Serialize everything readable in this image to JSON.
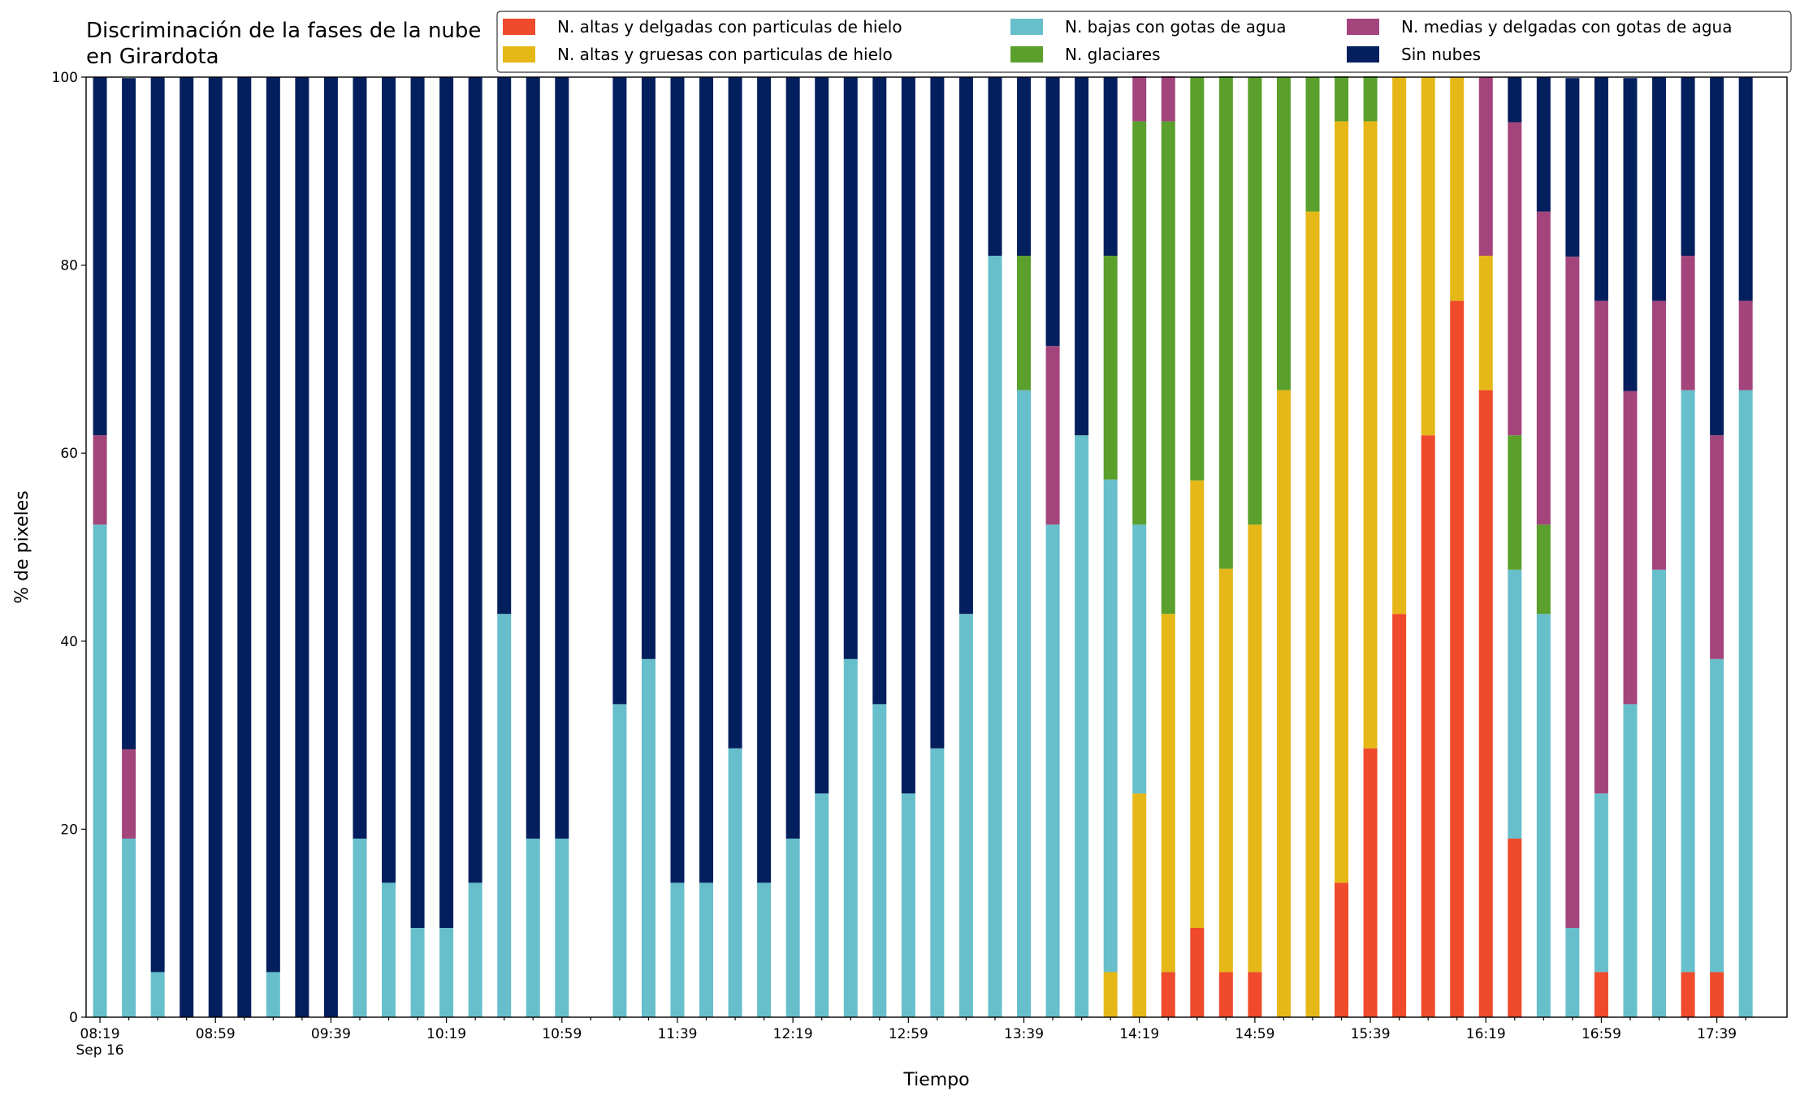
{
  "chart_data": {
    "type": "stacked_bar",
    "title": "Discriminación de la fases de la nube en Girardota",
    "x_label": "Tiempo",
    "y_label": "% de pixeles",
    "x_date_label": "Sep 16",
    "categories": [
      "08:19",
      null,
      null,
      null,
      "08:59",
      null,
      null,
      null,
      "09:39",
      null,
      null,
      null,
      "10:19",
      null,
      null,
      null,
      "10:59",
      null,
      null,
      null,
      "11:39",
      null,
      null,
      null,
      "12:19",
      null,
      null,
      null,
      "12:59",
      null,
      null,
      null,
      "13:39",
      null,
      null,
      null,
      "14:19",
      null,
      null,
      null,
      "14:59",
      null,
      null,
      null,
      "15:39",
      null,
      null,
      null,
      "16:19",
      null,
      null,
      null,
      "16:59",
      null,
      null,
      null,
      "17:39",
      null
    ],
    "ylim": [
      0,
      100
    ],
    "yticks": [
      0,
      20,
      40,
      60,
      80,
      100
    ],
    "legend": "upper right",
    "series": [
      {
        "name": "N. altas y delgadas con particulas de hielo",
        "color": "#ee4a2b",
        "values": [
          0,
          0,
          0,
          0,
          0,
          0,
          0,
          0,
          0,
          0,
          0,
          0,
          0,
          0,
          0,
          0,
          0,
          null,
          0,
          0,
          0,
          0,
          0,
          0,
          0,
          0,
          0,
          0,
          0,
          0,
          0,
          0,
          0,
          0,
          0,
          0,
          0,
          4.8,
          9.5,
          4.8,
          4.8,
          0,
          0,
          14.3,
          28.6,
          42.9,
          61.9,
          76.2,
          66.7,
          19.0,
          0,
          0,
          4.8,
          0,
          0,
          4.8,
          4.8,
          0
        ]
      },
      {
        "name": "N. altas y gruesas con particulas de hielo",
        "color": "#e5b818",
        "values": [
          0,
          0,
          0,
          0,
          0,
          0,
          0,
          0,
          0,
          0,
          0,
          0,
          0,
          0,
          0,
          0,
          0,
          null,
          0,
          0,
          0,
          0,
          0,
          0,
          0,
          0,
          0,
          0,
          0,
          0,
          0,
          0,
          0,
          0,
          0,
          4.8,
          23.8,
          38.1,
          47.6,
          42.9,
          47.6,
          66.7,
          85.7,
          81.0,
          66.7,
          57.1,
          38.1,
          23.8,
          14.3,
          0,
          0,
          0,
          0,
          0,
          0,
          0,
          0,
          0
        ]
      },
      {
        "name": "N. bajas con gotas de agua",
        "color": "#67bfcb",
        "values": [
          52.4,
          19.0,
          4.8,
          0,
          0,
          0,
          4.8,
          0,
          0,
          19.0,
          14.3,
          9.5,
          9.5,
          14.3,
          42.9,
          19.0,
          19.0,
          null,
          33.3,
          38.1,
          14.3,
          14.3,
          28.6,
          14.3,
          19.0,
          23.8,
          38.1,
          33.3,
          23.8,
          28.6,
          42.9,
          81.0,
          66.7,
          52.4,
          61.9,
          52.4,
          28.6,
          0,
          0,
          0,
          0,
          0,
          0,
          0,
          0,
          0,
          0,
          0,
          0,
          28.6,
          42.9,
          9.5,
          19.0,
          33.3,
          47.6,
          61.9,
          33.3,
          66.7
        ]
      },
      {
        "name": "N. glaciares",
        "color": "#5b9f2c",
        "values": [
          0,
          0,
          0,
          0,
          0,
          0,
          0,
          0,
          0,
          0,
          0,
          0,
          0,
          0,
          0,
          0,
          0,
          null,
          0,
          0,
          0,
          0,
          0,
          0,
          0,
          0,
          0,
          0,
          0,
          0,
          0,
          0,
          14.3,
          0,
          0,
          23.8,
          42.9,
          52.4,
          42.9,
          52.4,
          47.6,
          33.3,
          14.3,
          4.8,
          4.8,
          0,
          0,
          0,
          0,
          14.3,
          9.5,
          0,
          0,
          0,
          0,
          0,
          0,
          0
        ]
      },
      {
        "name": "N. medias y delgadas con gotas de agua",
        "color": "#a3457c",
        "values": [
          9.5,
          9.5,
          0,
          0,
          0,
          0,
          0,
          0,
          0,
          0,
          0,
          0,
          0,
          0,
          0,
          0,
          0,
          null,
          0,
          0,
          0,
          0,
          0,
          0,
          0,
          0,
          0,
          0,
          0,
          0,
          0,
          0,
          0,
          19.0,
          0,
          0,
          4.8,
          4.8,
          0,
          0,
          0,
          0,
          0,
          0,
          0,
          0,
          0,
          0,
          19.0,
          33.3,
          33.3,
          71.4,
          52.4,
          33.3,
          28.6,
          14.3,
          23.8,
          9.5
        ]
      },
      {
        "name": "Sin nubes",
        "color": "#041f5e",
        "values": [
          38.1,
          71.4,
          95.2,
          100,
          100,
          100,
          95.2,
          100,
          100,
          81.0,
          85.7,
          90.5,
          90.5,
          85.7,
          57.1,
          81.0,
          81.0,
          null,
          66.7,
          61.9,
          85.7,
          85.7,
          71.4,
          85.7,
          81.0,
          76.2,
          61.9,
          66.7,
          76.2,
          71.4,
          57.1,
          19.0,
          19.0,
          28.6,
          38.1,
          19.0,
          0,
          0,
          0,
          0,
          0,
          0,
          0,
          0,
          0,
          0,
          0,
          0,
          0,
          4.8,
          14.3,
          19.0,
          23.8,
          33.3,
          23.8,
          19.0,
          38.1,
          23.8
        ]
      }
    ]
  }
}
